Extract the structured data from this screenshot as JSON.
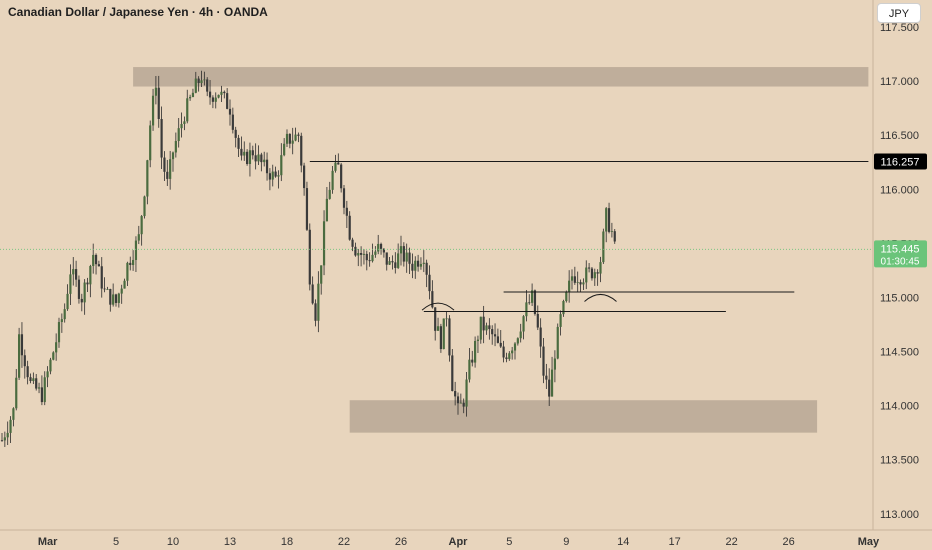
{
  "header": {
    "title": "Canadian Dollar / Japanese Yen · 4h · OANDA",
    "currency_button": "JPY"
  },
  "colors": {
    "background": "#e8d5bd",
    "up_candle": "#4a6b3f",
    "down_candle": "#3a3a3a",
    "zone_fill": "#bfae9b",
    "resistance_line": "#1a1a1a",
    "price_label_bg": "#6bc47a",
    "level_label_bg": "#000000"
  },
  "chart_data": {
    "type": "candlestick",
    "symbol": "CADJPY",
    "timeframe": "4h",
    "y_axis": {
      "ylim": [
        112.85,
        117.75
      ],
      "ticks": [
        "113.000",
        "113.500",
        "114.000",
        "114.500",
        "115.000",
        "115.500",
        "116.000",
        "116.500",
        "117.000",
        "117.500"
      ]
    },
    "x_axis": {
      "ticks": [
        {
          "label": "Mar",
          "idx": 8
        },
        {
          "label": "5",
          "idx": 20
        },
        {
          "label": "10",
          "idx": 30
        },
        {
          "label": "13",
          "idx": 40
        },
        {
          "label": "18",
          "idx": 50
        },
        {
          "label": "22",
          "idx": 60
        },
        {
          "label": "26",
          "idx": 70
        },
        {
          "label": "Apr",
          "idx": 80
        },
        {
          "label": "5",
          "idx": 89
        },
        {
          "label": "9",
          "idx": 99
        },
        {
          "label": "14",
          "idx": 109
        },
        {
          "label": "17",
          "idx": 118
        },
        {
          "label": "22",
          "idx": 128
        },
        {
          "label": "26",
          "idx": 138
        },
        {
          "label": "May",
          "idx": 152
        }
      ]
    },
    "close_path": [
      [
        0,
        113.68
      ],
      [
        2,
        113.95
      ],
      [
        3,
        114.65
      ],
      [
        5,
        114.2
      ],
      [
        7,
        114.1
      ],
      [
        9,
        114.5
      ],
      [
        11,
        114.9
      ],
      [
        12,
        115.25
      ],
      [
        14,
        115.0
      ],
      [
        16,
        115.4
      ],
      [
        18,
        115.05
      ],
      [
        20,
        114.95
      ],
      [
        22,
        115.3
      ],
      [
        24,
        115.55
      ],
      [
        25,
        116.0
      ],
      [
        26,
        116.6
      ],
      [
        27,
        117.0
      ],
      [
        28,
        116.3
      ],
      [
        29,
        116.05
      ],
      [
        30,
        116.35
      ],
      [
        32,
        116.7
      ],
      [
        34,
        116.95
      ],
      [
        35,
        117.05
      ],
      [
        36,
        116.85
      ],
      [
        38,
        116.9
      ],
      [
        40,
        116.75
      ],
      [
        42,
        116.25
      ],
      [
        44,
        116.35
      ],
      [
        46,
        116.2
      ],
      [
        48,
        116.1
      ],
      [
        50,
        116.45
      ],
      [
        52,
        116.5
      ],
      [
        53,
        116.0
      ],
      [
        54,
        115.2
      ],
      [
        55,
        114.85
      ],
      [
        56,
        115.35
      ],
      [
        57,
        115.9
      ],
      [
        58,
        116.15
      ],
      [
        59,
        116.2
      ],
      [
        60,
        115.9
      ],
      [
        61,
        115.6
      ],
      [
        62,
        115.45
      ],
      [
        64,
        115.35
      ],
      [
        66,
        115.45
      ],
      [
        68,
        115.3
      ],
      [
        70,
        115.4
      ],
      [
        72,
        115.3
      ],
      [
        74,
        115.4
      ],
      [
        75,
        115.1
      ],
      [
        76,
        114.75
      ],
      [
        77,
        114.6
      ],
      [
        78,
        114.85
      ],
      [
        79,
        114.2
      ],
      [
        80,
        113.95
      ],
      [
        81,
        114.05
      ],
      [
        82,
        114.35
      ],
      [
        84,
        114.75
      ],
      [
        86,
        114.65
      ],
      [
        88,
        114.45
      ],
      [
        90,
        114.6
      ],
      [
        92,
        114.9
      ],
      [
        93,
        115.0
      ],
      [
        94,
        114.7
      ],
      [
        95,
        114.3
      ],
      [
        96,
        114.1
      ],
      [
        97,
        114.5
      ],
      [
        98,
        114.8
      ],
      [
        99,
        115.0
      ],
      [
        100,
        115.2
      ],
      [
        102,
        115.2
      ],
      [
        104,
        115.25
      ],
      [
        105,
        115.35
      ],
      [
        106,
        115.75
      ],
      [
        107,
        115.6
      ],
      [
        107.5,
        115.45
      ]
    ],
    "zones": [
      {
        "from": 117.13,
        "to": 116.95,
        "start_idx": 23,
        "end_idx": 152
      },
      {
        "from": 114.05,
        "to": 113.75,
        "start_idx": 61,
        "end_idx": 143
      }
    ],
    "lines": [
      {
        "level": 116.257,
        "start_idx": 54,
        "end_idx": 152
      },
      {
        "level": 115.05,
        "start_idx": 88,
        "end_idx": 139
      },
      {
        "level": 114.87,
        "start_idx": 74,
        "end_idx": 127
      }
    ],
    "arcs": [
      {
        "center_idx": 76.5,
        "level": 114.92
      },
      {
        "center_idx": 105,
        "level": 115.0
      }
    ],
    "current_price": {
      "value": "115.445",
      "countdown": "01:30:45",
      "level": 115.445
    },
    "marked_level": {
      "value": "116.257",
      "level": 116.257
    }
  }
}
